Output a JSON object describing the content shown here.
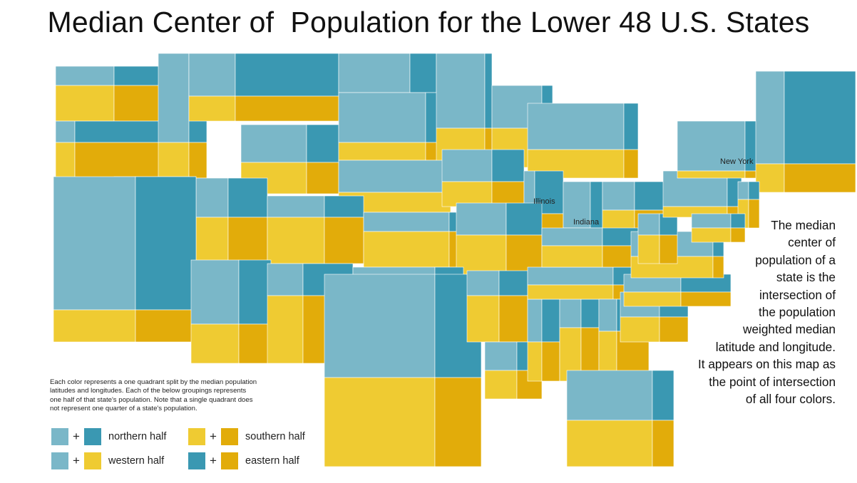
{
  "title": "Median Center of  Population for the Lower 48 U.S. States",
  "colors": {
    "nw": "#7ab7c8",
    "ne": "#3a98b2",
    "sw": "#efcb32",
    "se": "#e2ac0a"
  },
  "state_labels": {
    "new_york": "New York",
    "illinois": "Illinois",
    "indiana": "Indiana"
  },
  "explanation": [
    "The median",
    "center of",
    "population of a",
    "state is the",
    "intersection of",
    "the population",
    "weighted median",
    "latitude and longitude.",
    "It appears on this map as",
    "the point of intersection",
    "of all four colors."
  ],
  "note": [
    "Each color represents a one quadrant split by the median population",
    "latitudes and longitudes. Each of the below groupings represents",
    "one half of that state's population. Note that a single quadrant does",
    "not represent one quarter of  a state's population."
  ],
  "legend": {
    "plus": "+",
    "northern": "northern half",
    "southern": "southern half",
    "western": "western half",
    "eastern": "eastern half"
  }
}
